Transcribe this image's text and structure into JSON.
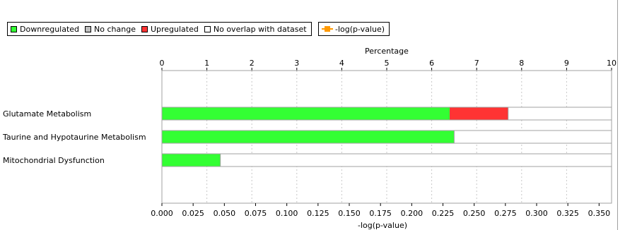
{
  "legend": {
    "items": [
      {
        "label": "Downregulated",
        "color": "#33ff33"
      },
      {
        "label": "No change",
        "color": "#c0c0c0"
      },
      {
        "label": "Upregulated",
        "color": "#ff3333"
      },
      {
        "label": "No overlap with dataset",
        "color": "#ffffff"
      }
    ],
    "line_item": {
      "label": "-log(p-value)",
      "color": "#ff9900"
    }
  },
  "chart_data": {
    "type": "bar",
    "orientation": "horizontal",
    "stacked": true,
    "top_axis": {
      "label": "Percentage",
      "range": [
        0,
        10
      ],
      "ticks": [
        "0",
        "1",
        "2",
        "3",
        "4",
        "5",
        "6",
        "7",
        "8",
        "9",
        "10"
      ]
    },
    "bottom_axis": {
      "label": "-log(p-value)",
      "range": [
        0,
        0.36
      ],
      "ticks": [
        "0.000",
        "0.025",
        "0.050",
        "0.075",
        "0.100",
        "0.125",
        "0.150",
        "0.175",
        "0.200",
        "0.225",
        "0.250",
        "0.275",
        "0.300",
        "0.325",
        "0.350"
      ]
    },
    "categories": [
      "Glutamate Metabolism",
      "Taurine and Hypotaurine Metabolism",
      "Mitochondrial Dysfunction"
    ],
    "series": [
      {
        "name": "Downregulated",
        "color": "#33ff33",
        "values": [
          6.4,
          6.5,
          1.3
        ]
      },
      {
        "name": "No change",
        "color": "#c0c0c0",
        "values": [
          0,
          0,
          0
        ]
      },
      {
        "name": "Upregulated",
        "color": "#ff3333",
        "values": [
          1.3,
          0,
          0
        ]
      },
      {
        "name": "No overlap with dataset",
        "color": "#ffffff",
        "values": [
          2.3,
          3.5,
          8.7
        ]
      }
    ],
    "gridlines": true,
    "legend_position": "top-left"
  }
}
